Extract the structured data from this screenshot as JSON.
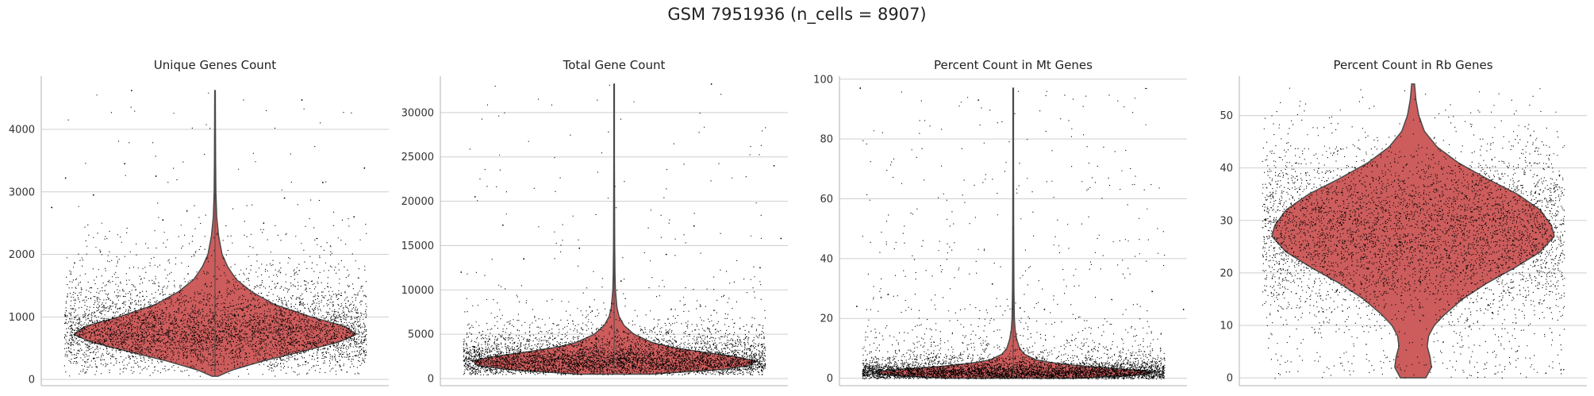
{
  "figure": {
    "title": "GSM 7951936 (n_cells = 8907)"
  },
  "colors": {
    "violin_fill": "#cd5c5c",
    "violin_edge": "#4a4a4a",
    "points": "#000000",
    "grid": "#cfcfcf",
    "axis": "#b0b0b0"
  },
  "chart_data": [
    {
      "type": "violin",
      "title": "Unique Genes Count",
      "xlabel": "",
      "ylabel": "",
      "ylim": [
        -100,
        4850
      ],
      "yticks": [
        0,
        1000,
        2000,
        3000,
        4000
      ],
      "grid": true,
      "n_points": 8907,
      "distribution": {
        "min": 50,
        "max": 4620,
        "median": 720,
        "q1": 560,
        "q3": 930
      },
      "density_profile": [
        [
          50,
          0.02
        ],
        [
          150,
          0.12
        ],
        [
          300,
          0.35
        ],
        [
          450,
          0.62
        ],
        [
          600,
          0.88
        ],
        [
          720,
          1.0
        ],
        [
          850,
          0.92
        ],
        [
          1000,
          0.68
        ],
        [
          1200,
          0.42
        ],
        [
          1400,
          0.26
        ],
        [
          1600,
          0.15
        ],
        [
          1800,
          0.09
        ],
        [
          2000,
          0.05
        ],
        [
          2300,
          0.025
        ],
        [
          2600,
          0.012
        ],
        [
          3000,
          0.006
        ],
        [
          3500,
          0.004
        ],
        [
          4000,
          0.003
        ],
        [
          4620,
          0.002
        ]
      ],
      "outliers": [
        {
          "y": 4620,
          "x": 0.26
        },
        {
          "y": 4470,
          "x": 0.75
        },
        {
          "y": 3450,
          "x": 0.24
        },
        {
          "y": 3380,
          "x": 0.93
        },
        {
          "y": 3250,
          "x": 0.33
        },
        {
          "y": 3220,
          "x": 0.07
        },
        {
          "y": 3150,
          "x": 0.81
        },
        {
          "y": 2950,
          "x": 0.15
        },
        {
          "y": 2900,
          "x": 0.7
        },
        {
          "y": 2750,
          "x": 0.03
        },
        {
          "y": 2600,
          "x": 0.9
        },
        {
          "y": 2550,
          "x": 0.35
        },
        {
          "y": 2500,
          "x": 0.64
        }
      ]
    },
    {
      "type": "violin",
      "title": "Total Gene Count",
      "xlabel": "",
      "ylabel": "",
      "ylim": [
        -800,
        34100
      ],
      "yticks": [
        0,
        5000,
        10000,
        15000,
        20000,
        25000,
        30000
      ],
      "grid": true,
      "n_points": 8907,
      "distribution": {
        "min": 500,
        "max": 33200,
        "median": 1900,
        "q1": 1300,
        "q3": 2800
      },
      "density_profile": [
        [
          500,
          0.25
        ],
        [
          1000,
          0.75
        ],
        [
          1500,
          0.97
        ],
        [
          2000,
          1.0
        ],
        [
          2500,
          0.85
        ],
        [
          3000,
          0.62
        ],
        [
          3500,
          0.42
        ],
        [
          4000,
          0.28
        ],
        [
          5000,
          0.14
        ],
        [
          6000,
          0.07
        ],
        [
          7000,
          0.035
        ],
        [
          8000,
          0.02
        ],
        [
          10000,
          0.009
        ],
        [
          12000,
          0.006
        ],
        [
          15000,
          0.004
        ],
        [
          20000,
          0.003
        ],
        [
          25000,
          0.002
        ],
        [
          33200,
          0.002
        ]
      ],
      "outliers": [
        {
          "y": 33200,
          "x": 0.78
        },
        {
          "y": 24000,
          "x": 0.96
        },
        {
          "y": 20500,
          "x": 0.1
        },
        {
          "y": 17300,
          "x": 0.18
        },
        {
          "y": 17200,
          "x": 0.73
        },
        {
          "y": 15800,
          "x": 0.98
        },
        {
          "y": 14700,
          "x": 0.4
        },
        {
          "y": 14000,
          "x": 0.65
        },
        {
          "y": 13500,
          "x": 0.24
        },
        {
          "y": 12500,
          "x": 0.92
        },
        {
          "y": 12000,
          "x": 0.06
        },
        {
          "y": 11000,
          "x": 0.52
        }
      ]
    },
    {
      "type": "violin",
      "title": "Percent Count in Mt Genes",
      "xlabel": "",
      "ylabel": "",
      "ylim": [
        -2.5,
        101
      ],
      "yticks": [
        0,
        20,
        40,
        60,
        80,
        100
      ],
      "grid": true,
      "n_points": 8907,
      "distribution": {
        "min": 0,
        "max": 97,
        "median": 2,
        "q1": 1,
        "q3": 3.5
      },
      "density_profile": [
        [
          0,
          0.45
        ],
        [
          1,
          0.9
        ],
        [
          2,
          1.0
        ],
        [
          3,
          0.8
        ],
        [
          4,
          0.5
        ],
        [
          5,
          0.3
        ],
        [
          6,
          0.17
        ],
        [
          8,
          0.08
        ],
        [
          10,
          0.045
        ],
        [
          13,
          0.025
        ],
        [
          16,
          0.014
        ],
        [
          20,
          0.008
        ],
        [
          30,
          0.005
        ],
        [
          50,
          0.003
        ],
        [
          75,
          0.002
        ],
        [
          97,
          0.002
        ]
      ],
      "outliers": [
        {
          "y": 97,
          "x": 0.06
        },
        {
          "y": 93,
          "x": 0.4
        },
        {
          "y": 31.5,
          "x": 0.44
        },
        {
          "y": 29,
          "x": 0.9
        },
        {
          "y": 28,
          "x": 0.14
        },
        {
          "y": 27,
          "x": 0.12
        },
        {
          "y": 24,
          "x": 0.05
        },
        {
          "y": 23.5,
          "x": 0.52
        },
        {
          "y": 23,
          "x": 0.99
        },
        {
          "y": 23,
          "x": 0.59
        }
      ]
    },
    {
      "type": "violin",
      "title": "Percent Count in Rb Genes",
      "xlabel": "",
      "ylabel": "",
      "ylim": [
        -1.5,
        57.5
      ],
      "yticks": [
        0,
        10,
        20,
        30,
        40,
        50
      ],
      "grid": true,
      "n_points": 8907,
      "distribution": {
        "min": 0,
        "max": 56,
        "median": 28,
        "q1": 21,
        "q3": 35
      },
      "density_profile": [
        [
          0,
          0.09
        ],
        [
          2,
          0.13
        ],
        [
          4,
          0.12
        ],
        [
          6,
          0.1
        ],
        [
          8,
          0.11
        ],
        [
          10,
          0.15
        ],
        [
          12,
          0.22
        ],
        [
          15,
          0.35
        ],
        [
          18,
          0.52
        ],
        [
          21,
          0.72
        ],
        [
          24,
          0.9
        ],
        [
          27,
          1.0
        ],
        [
          29,
          0.98
        ],
        [
          32,
          0.9
        ],
        [
          35,
          0.74
        ],
        [
          38,
          0.52
        ],
        [
          41,
          0.32
        ],
        [
          44,
          0.17
        ],
        [
          47,
          0.08
        ],
        [
          50,
          0.04
        ],
        [
          53,
          0.02
        ],
        [
          56,
          0.01
        ]
      ],
      "outliers": []
    }
  ]
}
